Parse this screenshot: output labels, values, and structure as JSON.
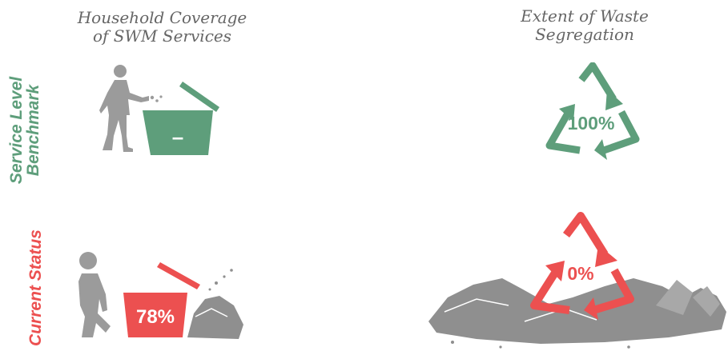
{
  "columns": {
    "household_coverage": {
      "title_line1": "Household Coverage",
      "title_line2": "of SWM Services"
    },
    "waste_segregation": {
      "title_line1": "Extent of Waste",
      "title_line2": "Segregation"
    }
  },
  "rows": {
    "benchmark": {
      "label_line1": "Service Level",
      "label_line2": "Benchmark"
    },
    "current": {
      "label": "Current Status"
    }
  },
  "values": {
    "benchmark_coverage": "–",
    "benchmark_segregation": "100%",
    "current_coverage": "78%",
    "current_segregation": "0%"
  },
  "colors": {
    "benchmark_green": "#5e9e7b",
    "current_red": "#ec5050",
    "figure_gray": "#9b9b9b",
    "title_gray": "#666666"
  },
  "icons": {
    "person": "person-throwing-waste-icon",
    "bin": "waste-bin-icon",
    "recycle": "recycle-triangle-icon",
    "garbage": "garbage-pile-icon"
  }
}
